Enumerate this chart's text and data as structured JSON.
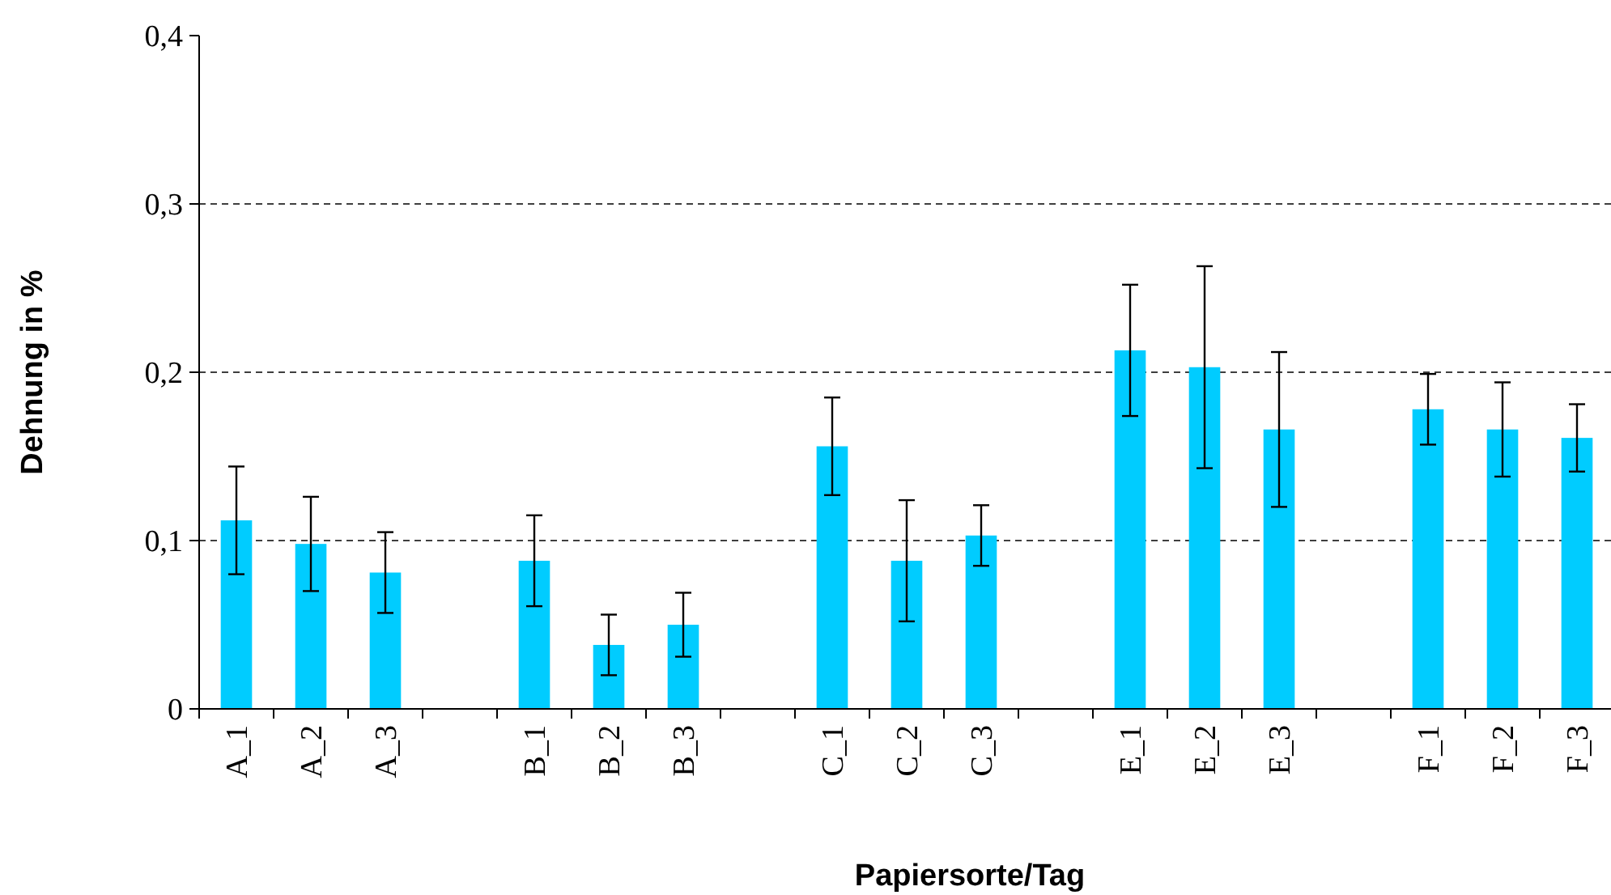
{
  "chart_data": {
    "type": "bar",
    "xlabel": "Papiersorte/Tag",
    "ylabel": "Dehnung in %",
    "categories": [
      "A_1",
      "A_2",
      "A_3",
      null,
      "B_1",
      "B_2",
      "B_3",
      null,
      "C_1",
      "C_2",
      "C_3",
      null,
      "E_1",
      "E_2",
      "E_3",
      null,
      "F_1",
      "F_2",
      "F_3"
    ],
    "values": [
      0.112,
      0.098,
      0.081,
      null,
      0.088,
      0.038,
      0.05,
      null,
      0.156,
      0.088,
      0.103,
      null,
      0.213,
      0.203,
      0.166,
      null,
      0.178,
      0.166,
      0.161
    ],
    "errors": [
      0.032,
      0.028,
      0.024,
      null,
      0.027,
      0.018,
      0.019,
      null,
      0.029,
      0.036,
      0.018,
      null,
      0.039,
      0.06,
      0.046,
      null,
      0.021,
      0.028,
      0.02
    ],
    "color": "#00ccff",
    "ylim": [
      0,
      0.4
    ],
    "yticks": [
      0,
      {
        "value": 0.1,
        "label": "0,1"
      },
      {
        "value": 0.2,
        "label": "0,2"
      },
      {
        "value": 0.3,
        "label": "0,3"
      },
      {
        "value": 0.4,
        "label": "0,4"
      }
    ],
    "grid": "y",
    "line_style": "dashed"
  }
}
